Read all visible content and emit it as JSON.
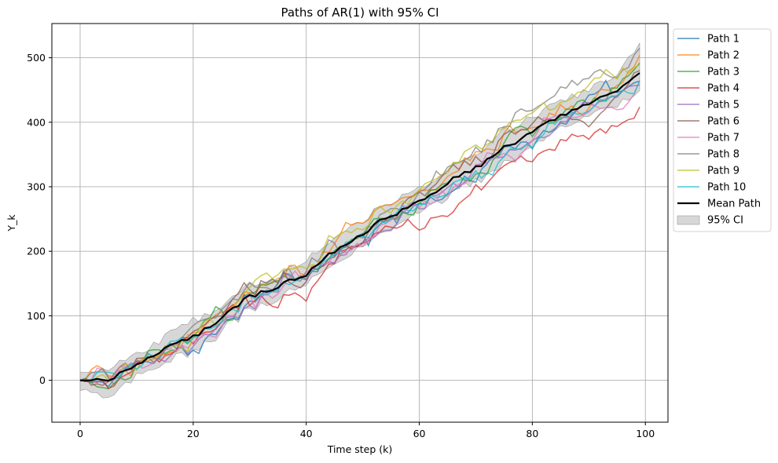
{
  "chart_data": {
    "type": "line",
    "title": "Paths of AR(1) with 95% CI",
    "xlabel": "Time step (k)",
    "ylabel": "Y_k",
    "xlim": [
      -5,
      104
    ],
    "ylim": [
      -65,
      553
    ],
    "xticks": [
      0,
      20,
      40,
      60,
      80,
      100
    ],
    "yticks": [
      0,
      100,
      200,
      300,
      400,
      500
    ],
    "grid": true,
    "legend_position": "outside-right-top",
    "series": [
      {
        "name": "Path 1",
        "color": "#1f77b4"
      },
      {
        "name": "Path 2",
        "color": "#ff7f0e"
      },
      {
        "name": "Path 3",
        "color": "#2ca02c"
      },
      {
        "name": "Path 4",
        "color": "#d62728"
      },
      {
        "name": "Path 5",
        "color": "#9467bd"
      },
      {
        "name": "Path 6",
        "color": "#8c564b"
      },
      {
        "name": "Path 7",
        "color": "#e377c2"
      },
      {
        "name": "Path 8",
        "color": "#7f7f7f"
      },
      {
        "name": "Path 9",
        "color": "#bcbd22"
      },
      {
        "name": "Path 10",
        "color": "#17becf"
      }
    ],
    "mean": {
      "name": "Mean Path",
      "color": "#000000",
      "x": [
        0,
        5,
        10,
        15,
        20,
        25,
        30,
        35,
        40,
        45,
        50,
        55,
        60,
        65,
        70,
        75,
        80,
        85,
        90,
        95,
        99
      ],
      "y": [
        0,
        2,
        22,
        52,
        68,
        95,
        130,
        145,
        165,
        200,
        228,
        255,
        275,
        305,
        330,
        360,
        385,
        410,
        430,
        450,
        476
      ]
    },
    "ci": {
      "name": "95% CI",
      "color": "#bfbfbf",
      "lower": [
        -15,
        -25,
        5,
        30,
        45,
        75,
        110,
        125,
        148,
        180,
        210,
        235,
        258,
        285,
        310,
        335,
        362,
        390,
        410,
        428,
        448
      ],
      "upper": [
        10,
        20,
        38,
        72,
        92,
        115,
        148,
        162,
        185,
        218,
        248,
        275,
        295,
        325,
        352,
        385,
        408,
        432,
        452,
        475,
        522
      ]
    },
    "path_endpoints": [
      468,
      495,
      480,
      425,
      455,
      478,
      470,
      505,
      500,
      465
    ]
  }
}
